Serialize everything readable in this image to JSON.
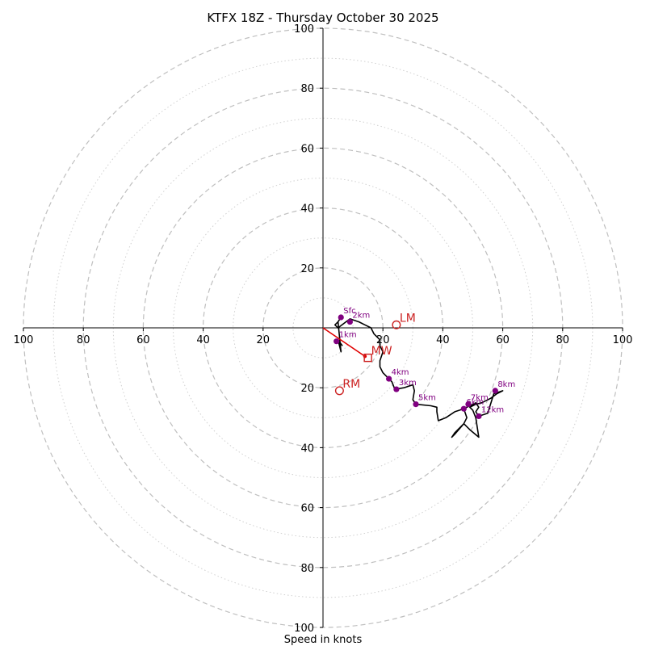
{
  "chart_data": {
    "type": "hodograph",
    "title": "KTFX 18Z - Thursday October 30 2025",
    "xlabel": "Speed in knots",
    "axis_range": [
      -100,
      100
    ],
    "rings_major": [
      20,
      40,
      60,
      80,
      100
    ],
    "rings_minor": [
      10,
      30,
      50,
      70,
      90
    ],
    "x_tick_labels": [
      {
        "value": -100,
        "label": "100"
      },
      {
        "value": -80,
        "label": "80"
      },
      {
        "value": -60,
        "label": "60"
      },
      {
        "value": -40,
        "label": "40"
      },
      {
        "value": -20,
        "label": "20"
      },
      {
        "value": 20,
        "label": "20"
      },
      {
        "value": 40,
        "label": "40"
      },
      {
        "value": 60,
        "label": "60"
      },
      {
        "value": 80,
        "label": "80"
      },
      {
        "value": 100,
        "label": "100"
      }
    ],
    "y_tick_labels": [
      {
        "value": 100,
        "label": "100"
      },
      {
        "value": 80,
        "label": "80"
      },
      {
        "value": 60,
        "label": "60"
      },
      {
        "value": 40,
        "label": "40"
      },
      {
        "value": 20,
        "label": "20"
      },
      {
        "value": -20,
        "label": "20"
      },
      {
        "value": -40,
        "label": "40"
      },
      {
        "value": -60,
        "label": "60"
      },
      {
        "value": -80,
        "label": "80"
      },
      {
        "value": -100,
        "label": "100"
      }
    ],
    "colors": {
      "trace": "#000000",
      "points": "#800080",
      "markers": "#cc2222",
      "grid": "#bfbfbf"
    },
    "trace": [
      [
        6,
        3.5
      ],
      [
        5,
        2
      ],
      [
        4,
        1
      ],
      [
        5,
        0
      ],
      [
        9,
        3
      ],
      [
        12,
        2
      ],
      [
        14,
        1
      ],
      [
        16,
        0
      ],
      [
        17,
        -2
      ],
      [
        19,
        -4
      ],
      [
        19,
        -6
      ],
      [
        20,
        -8
      ],
      [
        19,
        -11
      ],
      [
        19,
        -13
      ],
      [
        20,
        -15
      ],
      [
        22,
        -17
      ],
      [
        23,
        -18
      ],
      [
        24,
        -20.5
      ],
      [
        27,
        -20
      ],
      [
        30,
        -19
      ],
      [
        30.5,
        -21
      ],
      [
        30,
        -24
      ],
      [
        31,
        -25.5
      ],
      [
        36,
        -26
      ],
      [
        38,
        -26.5
      ],
      [
        38,
        -28
      ],
      [
        38.5,
        -31
      ],
      [
        41,
        -30
      ],
      [
        44,
        -28
      ],
      [
        47,
        -27
      ],
      [
        49,
        -26
      ],
      [
        51,
        -25
      ],
      [
        52,
        -26.5
      ],
      [
        51,
        -28
      ],
      [
        52,
        -29.5
      ],
      [
        55,
        -28.5
      ],
      [
        57,
        -22
      ],
      [
        60,
        -21
      ],
      [
        58,
        -22
      ],
      [
        56,
        -23.5
      ],
      [
        53,
        -25
      ],
      [
        51,
        -25.5
      ],
      [
        49,
        -26.5
      ],
      [
        50,
        -27.5
      ],
      [
        51,
        -30
      ],
      [
        52,
        -36.5
      ],
      [
        49,
        -34
      ],
      [
        47,
        -32
      ],
      [
        44,
        -35
      ],
      [
        43,
        -36.5
      ],
      [
        44,
        -35.5
      ],
      [
        47,
        -32
      ],
      [
        48,
        -30
      ],
      [
        47,
        -27
      ]
    ],
    "points": [
      {
        "label": "Sfc",
        "u": 6,
        "v": 3.5
      },
      {
        "label": "2km",
        "u": 9,
        "v": 2
      },
      {
        "label": "1km",
        "u": 4.5,
        "v": -4.5
      },
      {
        "label": "4km",
        "u": 22,
        "v": -17
      },
      {
        "label": "3km",
        "u": 24.5,
        "v": -20.5
      },
      {
        "label": "5km",
        "u": 31,
        "v": -25.5
      },
      {
        "label": "8km",
        "u": 57.5,
        "v": -21
      },
      {
        "label": "7km",
        "u": 48.5,
        "v": -25.5
      },
      {
        "label": "6km",
        "u": 47,
        "v": -27
      },
      {
        "label": "12km",
        "u": 52,
        "v": -29.5
      }
    ],
    "extra_trace": [
      [
        5,
        2
      ],
      [
        6,
        -8
      ],
      [
        5,
        -4
      ],
      [
        6.5,
        -6
      ]
    ],
    "mean_wind_vector": {
      "from": [
        0,
        0
      ],
      "to": [
        14,
        -9.5
      ]
    },
    "markers": [
      {
        "label": "LM",
        "u": 24.5,
        "v": 1,
        "shape": "circle"
      },
      {
        "label": "RM",
        "u": 5.5,
        "v": -21,
        "shape": "circle"
      },
      {
        "label": "MW",
        "u": 15,
        "v": -10,
        "shape": "square"
      }
    ]
  }
}
